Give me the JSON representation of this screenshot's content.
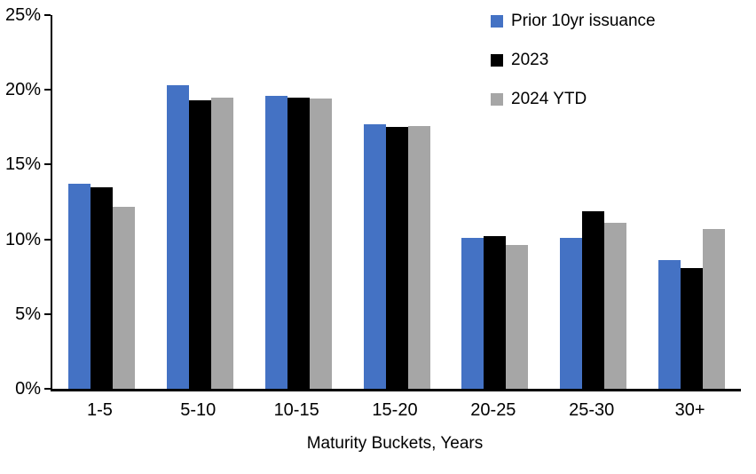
{
  "chart_data": {
    "type": "bar",
    "title": "",
    "xlabel": "Maturity Buckets, Years",
    "ylabel": "",
    "ylim": [
      0,
      25
    ],
    "ytick_values": [
      0,
      5,
      10,
      15,
      20,
      25
    ],
    "ytick_labels": [
      "0%",
      "5%",
      "10%",
      "15%",
      "20%",
      "25%"
    ],
    "categories": [
      "1-5",
      "5-10",
      "10-15",
      "15-20",
      "20-25",
      "25-30",
      "30+"
    ],
    "series": [
      {
        "name": "Prior 10yr issuance",
        "color": "#4472C4",
        "values": [
          13.7,
          20.3,
          19.6,
          17.7,
          10.1,
          10.1,
          8.6
        ]
      },
      {
        "name": "2023",
        "color": "#000000",
        "values": [
          13.5,
          19.3,
          19.5,
          17.5,
          10.2,
          11.9,
          8.1
        ]
      },
      {
        "name": "2024 YTD",
        "color": "#A6A6A6",
        "values": [
          12.2,
          19.5,
          19.4,
          17.6,
          9.6,
          11.1,
          10.7
        ]
      }
    ],
    "legend_position": "top-right",
    "grid": false,
    "axis_color": "#000000",
    "background_color": "#FFFFFF"
  }
}
